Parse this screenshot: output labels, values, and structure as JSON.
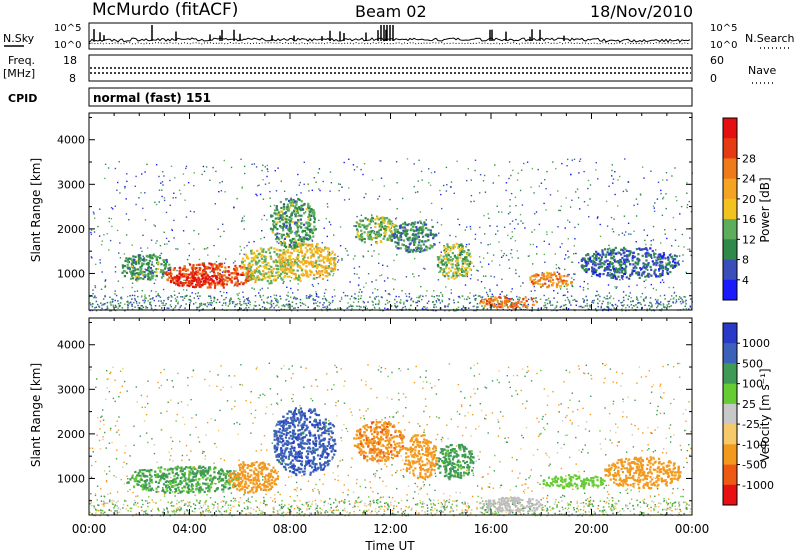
{
  "header": {
    "station": "McMurdo (fitACF)",
    "beam": "Beam 02",
    "date": "18/Nov/2010"
  },
  "top_panels": {
    "nsky_label": "N.Sky",
    "nsky_ticks": [
      "10^5",
      "10^0"
    ],
    "nsearch_label": "N.Search",
    "nsearch_ticks": [
      "10^5",
      "10^0"
    ],
    "freq_label_1": "Freq.",
    "freq_label_2": "[MHz]",
    "freq_ticks": [
      "18",
      "8"
    ],
    "nave_label": "Nave",
    "nave_ticks": [
      "60",
      "0"
    ],
    "cpid_label": "CPID",
    "cpid_value": "normal (fast) 151"
  },
  "colors": {
    "power_scale": [
      "#1a1aff",
      "#3a4db8",
      "#2f8a4a",
      "#5cae5c",
      "#f2c21f",
      "#f5a323",
      "#ee7a1a",
      "#e63a12",
      "#e41010"
    ],
    "velocity_scale": [
      "#e81010",
      "#ee5a14",
      "#f39a1e",
      "#f6c96a",
      "#c8c8c8",
      "#66cc33",
      "#3f9a55",
      "#3b62b8",
      "#2a3ac8"
    ],
    "ground_scatter": "#bdbdbd"
  },
  "chart_data": [
    {
      "type": "heatmap",
      "panel": "power",
      "ylabel": "Slant Range [km]",
      "xlabel": "",
      "yticks": [
        "1000",
        "2000",
        "3000",
        "4000"
      ],
      "ylim": [
        180,
        4600
      ],
      "xticks": [
        "00:00",
        "04:00",
        "08:00",
        "12:00",
        "16:00",
        "20:00",
        "00:00"
      ],
      "xlim": [
        0,
        24
      ],
      "colorbar": {
        "label": "Power [dB]",
        "ticks": [
          "4",
          "8",
          "12",
          "16",
          "20",
          "24",
          "28"
        ],
        "range": [
          0,
          30
        ]
      },
      "regions": [
        {
          "t": [
            1.2,
            3.2
          ],
          "r": [
            850,
            1450
          ],
          "v": 10
        },
        {
          "t": [
            3.0,
            6.5
          ],
          "r": [
            700,
            1250
          ],
          "v": 24
        },
        {
          "t": [
            3.2,
            5.2
          ],
          "r": [
            720,
            1050
          ],
          "v": 28
        },
        {
          "t": [
            6.0,
            8.0
          ],
          "r": [
            800,
            1600
          ],
          "v": 14
        },
        {
          "t": [
            7.5,
            9.8
          ],
          "r": [
            850,
            1700
          ],
          "v": 16
        },
        {
          "t": [
            7.2,
            9.0
          ],
          "r": [
            1600,
            2700
          ],
          "v": 10
        },
        {
          "t": [
            10.5,
            12.2
          ],
          "r": [
            1700,
            2300
          ],
          "v": 12
        },
        {
          "t": [
            12.0,
            13.8
          ],
          "r": [
            1500,
            2200
          ],
          "v": 8
        },
        {
          "t": [
            13.8,
            15.2
          ],
          "r": [
            900,
            1700
          ],
          "v": 12
        },
        {
          "t": [
            15.5,
            17.8
          ],
          "r": [
            250,
            500
          ],
          "v": 22
        },
        {
          "t": [
            17.5,
            19.2
          ],
          "r": [
            700,
            1050
          ],
          "v": 20
        },
        {
          "t": [
            19.5,
            23.5
          ],
          "r": [
            900,
            1600
          ],
          "v": 6
        }
      ]
    },
    {
      "type": "heatmap",
      "panel": "velocity",
      "ylabel": "Slant Range [km]",
      "xlabel": "Time UT",
      "yticks": [
        "1000",
        "2000",
        "3000",
        "4000"
      ],
      "ylim": [
        180,
        4600
      ],
      "xticks": [
        "00:00",
        "04:00",
        "08:00",
        "12:00",
        "16:00",
        "20:00",
        "00:00"
      ],
      "xlim": [
        0,
        24
      ],
      "colorbar": {
        "label": "Velocity [m s⁻¹]",
        "ticks": [
          "1000",
          "500",
          "100",
          "25",
          "-25",
          "-100",
          "-500",
          "-1000"
        ],
        "range": [
          -1000,
          1000
        ]
      },
      "regions": [
        {
          "t": [
            1.5,
            6.0
          ],
          "r": [
            700,
            1300
          ],
          "v": 120
        },
        {
          "t": [
            5.5,
            7.5
          ],
          "r": [
            700,
            1400
          ],
          "v": -200
        },
        {
          "t": [
            7.3,
            9.8
          ],
          "r": [
            1100,
            2600
          ],
          "v": 800
        },
        {
          "t": [
            10.5,
            12.5
          ],
          "r": [
            1400,
            2300
          ],
          "v": -400
        },
        {
          "t": [
            12.5,
            13.8
          ],
          "r": [
            1000,
            2000
          ],
          "v": -200
        },
        {
          "t": [
            13.8,
            15.3
          ],
          "r": [
            1000,
            1800
          ],
          "v": 150
        },
        {
          "t": [
            15.5,
            18.0
          ],
          "r": [
            250,
            600
          ],
          "v": 0
        },
        {
          "t": [
            18.0,
            20.5
          ],
          "r": [
            800,
            1100
          ],
          "v": 60
        },
        {
          "t": [
            20.5,
            23.5
          ],
          "r": [
            800,
            1500
          ],
          "v": -300
        }
      ]
    }
  ]
}
